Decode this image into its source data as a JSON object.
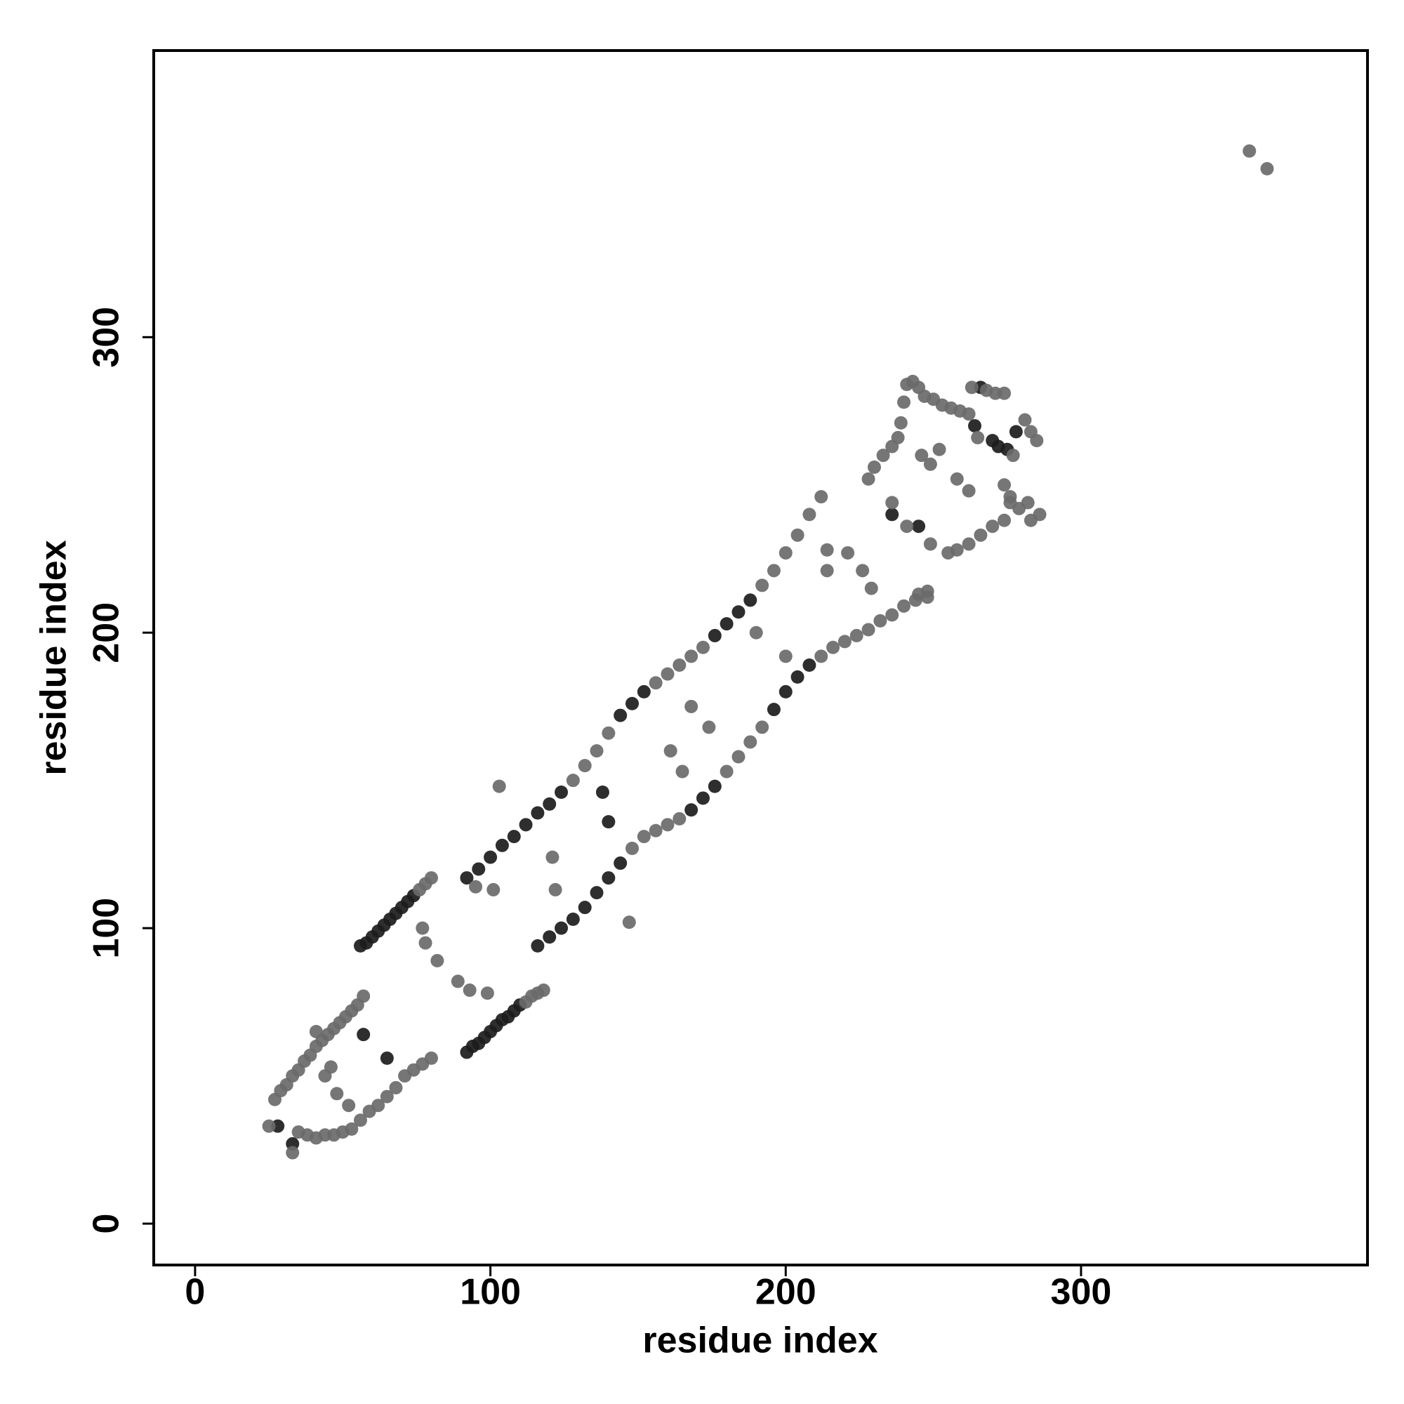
{
  "chart_data": {
    "type": "scatter",
    "xlabel": "residue index",
    "ylabel": "residue index",
    "xlim": [
      -14,
      397
    ],
    "ylim": [
      -14,
      397
    ],
    "xticks": [
      0,
      100,
      200,
      300
    ],
    "yticks": [
      0,
      100,
      200,
      300
    ],
    "grid": false,
    "series": [
      {
        "color": "#1c1c1c",
        "x": [
          56,
          58,
          60,
          62,
          64,
          66,
          68,
          70,
          72,
          74,
          92,
          94,
          96,
          98,
          100,
          102,
          104,
          106,
          108,
          110,
          92,
          96,
          100,
          104,
          108,
          112,
          116,
          120,
          124,
          144,
          148,
          152,
          176,
          180,
          184,
          188,
          116,
          120,
          124,
          128,
          132,
          136,
          140,
          144,
          168,
          172,
          176,
          196,
          200,
          204,
          208,
          33,
          28,
          65,
          57,
          140,
          138,
          264,
          266,
          270,
          272,
          275,
          278,
          236,
          245
        ],
        "values": [
          94,
          95,
          97,
          99,
          101,
          103,
          105,
          107,
          109,
          111,
          58,
          60,
          61,
          63,
          65,
          67,
          69,
          70,
          72,
          74,
          117,
          120,
          124,
          128,
          131,
          135,
          139,
          142,
          146,
          172,
          176,
          180,
          199,
          203,
          207,
          211,
          94,
          97,
          100,
          103,
          107,
          112,
          117,
          122,
          140,
          144,
          148,
          174,
          180,
          185,
          189,
          27,
          33,
          56,
          64,
          136,
          146,
          270,
          283,
          265,
          263,
          262,
          268,
          240,
          236
        ]
      },
      {
        "color": "#6a6a6a",
        "x": [
          27,
          29,
          31,
          33,
          35,
          37,
          39,
          41,
          43,
          45,
          47,
          49,
          51,
          53,
          55,
          57,
          35,
          38,
          41,
          44,
          47,
          50,
          53,
          56,
          59,
          62,
          65,
          68,
          71,
          74,
          77,
          80,
          33,
          25,
          44,
          48,
          52,
          46,
          41,
          76,
          78,
          80,
          77,
          78,
          82,
          89,
          93,
          99,
          112,
          114,
          116,
          118,
          128,
          132,
          136,
          140,
          156,
          160,
          164,
          168,
          172,
          192,
          196,
          200,
          204,
          208,
          212,
          148,
          152,
          156,
          160,
          164,
          180,
          184,
          188,
          192,
          212,
          216,
          220,
          224,
          228,
          232,
          236,
          240,
          244,
          248,
          103,
          147,
          161,
          168,
          174,
          165,
          190,
          200,
          214,
          214,
          221,
          226,
          229,
          121,
          122,
          95,
          101,
          228,
          230,
          233,
          236,
          238,
          239,
          240,
          241,
          243,
          245,
          247,
          250,
          253,
          256,
          259,
          262,
          265,
          263,
          268,
          271,
          274,
          277,
          281,
          283,
          285,
          276,
          279,
          283,
          286,
          274,
          270,
          266,
          262,
          258,
          255,
          262,
          258,
          252,
          246,
          249,
          236,
          241,
          249,
          245,
          248,
          274,
          276,
          282,
          357,
          363
        ],
        "values": [
          42,
          45,
          47,
          50,
          52,
          55,
          57,
          60,
          62,
          64,
          66,
          68,
          70,
          72,
          74,
          77,
          31,
          30,
          29,
          30,
          30,
          31,
          32,
          35,
          38,
          40,
          43,
          46,
          50,
          52,
          54,
          56,
          24,
          33,
          50,
          44,
          40,
          53,
          65,
          113,
          115,
          117,
          100,
          95,
          89,
          82,
          79,
          78,
          75,
          77,
          78,
          79,
          150,
          155,
          160,
          166,
          183,
          186,
          189,
          192,
          195,
          216,
          221,
          227,
          233,
          240,
          246,
          127,
          131,
          133,
          135,
          137,
          153,
          158,
          163,
          168,
          192,
          195,
          197,
          199,
          201,
          204,
          206,
          209,
          211,
          214,
          148,
          102,
          160,
          175,
          168,
          153,
          200,
          192,
          228,
          221,
          227,
          221,
          215,
          124,
          113,
          114,
          113,
          252,
          256,
          260,
          263,
          266,
          271,
          278,
          284,
          285,
          283,
          280,
          279,
          277,
          276,
          275,
          274,
          266,
          283,
          282,
          281,
          281,
          260,
          272,
          268,
          265,
          246,
          242,
          238,
          240,
          238,
          236,
          233,
          230,
          228,
          227,
          248,
          252,
          262,
          260,
          257,
          244,
          236,
          230,
          213,
          212,
          250,
          244,
          244,
          363,
          357
        ]
      }
    ]
  }
}
